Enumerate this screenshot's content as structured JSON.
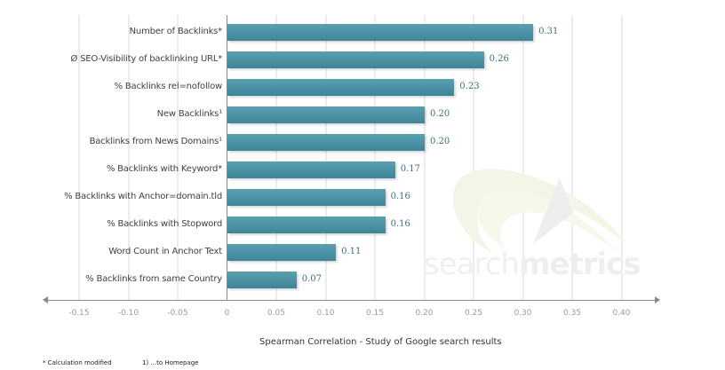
{
  "chart_data": {
    "type": "bar",
    "orientation": "horizontal",
    "title": "",
    "xlabel": "Spearman Correlation - Study of Google search results",
    "ylabel": "",
    "xlim": [
      -0.15,
      0.4
    ],
    "grid": true,
    "legend": null,
    "categories": [
      "Number of Backlinks*",
      "Ø SEO-Visibility of backlinking URL*",
      "% Backlinks rel=nofollow",
      "New Backlinks¹",
      "Backlinks from News Domains¹",
      "% Backlinks with Keyword*",
      "% Backlinks with Anchor=domain.tld",
      "% Backlinks with Stopword",
      "Word Count in Anchor Text",
      "% Backlinks from same Country"
    ],
    "values": [
      0.31,
      0.26,
      0.23,
      0.2,
      0.2,
      0.17,
      0.16,
      0.16,
      0.11,
      0.07
    ],
    "value_labels": [
      "0.31",
      "0.26",
      "0.23",
      "0.20",
      "0.20",
      "0.17",
      "0.16",
      "0.16",
      "0.11",
      "0.07"
    ],
    "xticks": [
      "-0.15",
      "-0.10",
      "-0.05",
      "0",
      "0.05",
      "0.10",
      "0.15",
      "0.20",
      "0.25",
      "0.30",
      "0.35",
      "0.40"
    ],
    "bar_color": "#4a93a6"
  },
  "footnotes": {
    "asterisk": "* Calculation modified",
    "one": "1) ...to Homepage"
  },
  "watermark": {
    "text_light": "search",
    "text_bold": "metrics"
  }
}
